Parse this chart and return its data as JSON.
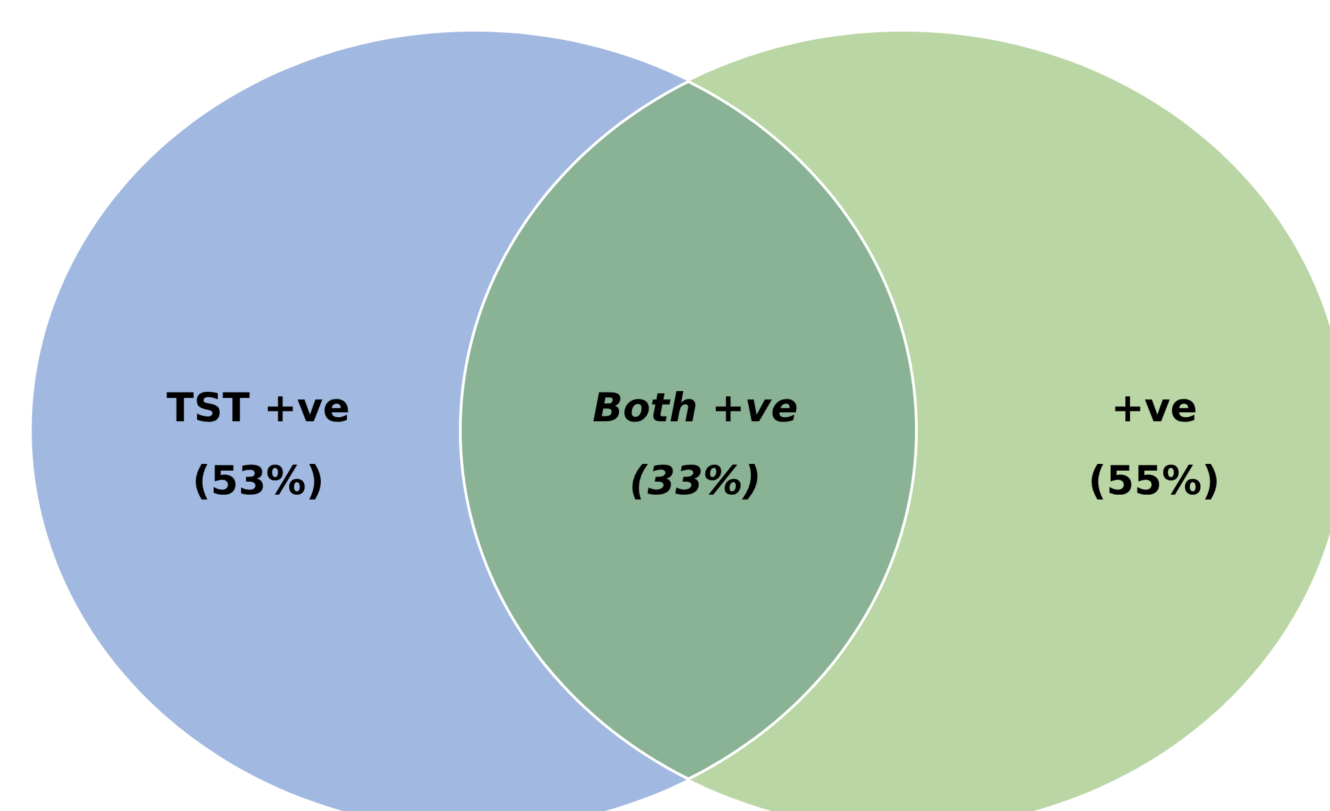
{
  "chart_data": {
    "type": "other",
    "categories": [
      "TST +ve",
      "Both +ve",
      "+ve"
    ],
    "values": [
      53,
      33,
      55
    ],
    "value_labels": [
      "(53%)",
      "(33%)",
      "(55%)"
    ],
    "colors": [
      "#a1b8e0",
      "#8ab295",
      "#b9d6a4"
    ]
  }
}
